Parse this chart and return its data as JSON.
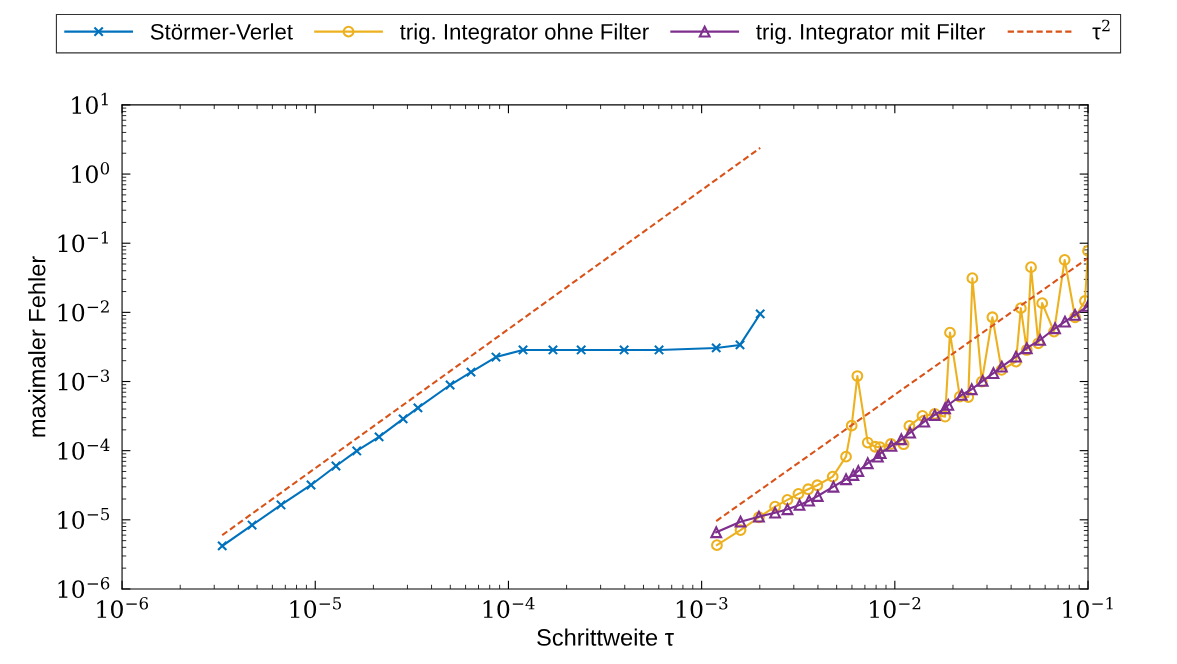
{
  "chart_data": {
    "type": "line",
    "xlabel": "Schrittweite τ",
    "ylabel": "maximaler Fehler",
    "log": "xy",
    "grid": false,
    "legend": "top",
    "xlim": [
      1e-06,
      0.1
    ],
    "ylim": [
      1e-06,
      10
    ],
    "xticks": [
      {
        "value": 1e-06,
        "label": "10$^{−6}$"
      },
      {
        "value": 1e-05,
        "label": "10$^{−5}$"
      },
      {
        "value": 0.0001,
        "label": "10$^{−4}$"
      },
      {
        "value": 0.001,
        "label": "10$^{−3}$"
      },
      {
        "value": 0.01,
        "label": "10$^{−2}$"
      },
      {
        "value": 0.1,
        "label": "10$^{−1}$"
      }
    ],
    "yticks": [
      {
        "value": 1e-06,
        "label": "10$^{−6}$"
      },
      {
        "value": 1e-05,
        "label": "10$^{−5}$"
      },
      {
        "value": 0.0001,
        "label": "10$^{−4}$"
      },
      {
        "value": 0.001,
        "label": "10$^{−3}$"
      },
      {
        "value": 0.01,
        "label": "10$^{−2}$"
      },
      {
        "value": 0.1,
        "label": "10$^{−1}$"
      },
      {
        "value": 1,
        "label": "10$^{0}$"
      },
      {
        "value": 10,
        "label": "10$^{1}$"
      }
    ],
    "series": [
      {
        "name": "Störmer-Verlet",
        "color": "#0072bd",
        "marker": "cross",
        "line_style": "solid",
        "x": [
          3.3e-06,
          4.71e-06,
          6.65e-06,
          9.51e-06,
          1.28e-05,
          1.64e-05,
          2.14e-05,
          2.85e-05,
          3.4e-05,
          4.99e-05,
          6.4e-05,
          8.62e-05,
          0.000119,
          0.00017,
          0.000238,
          0.000397,
          0.000602,
          0.00119,
          0.00158,
          0.00201
        ],
        "values": [
          4.19e-06,
          8.4e-06,
          1.64e-05,
          3.19e-05,
          6e-05,
          9.9e-05,
          0.000158,
          0.000288,
          0.000415,
          0.00089,
          0.00137,
          0.00226,
          0.00286,
          0.00286,
          0.00286,
          0.00286,
          0.00286,
          0.00306,
          0.00338,
          0.0095
        ]
      },
      {
        "name": "trig. Integrator ohne Filter",
        "color": "#edb120",
        "marker": "circle",
        "line_style": "solid",
        "x": [
          0.0012,
          0.00159,
          0.00198,
          0.0024,
          0.00278,
          0.00317,
          0.00356,
          0.00397,
          0.00477,
          0.00559,
          0.00598,
          0.0064,
          0.00724,
          0.00791,
          0.00838,
          0.00955,
          0.0111,
          0.0119,
          0.0139,
          0.0161,
          0.0182,
          0.0193,
          0.0217,
          0.024,
          0.0252,
          0.0282,
          0.032,
          0.0357,
          0.0424,
          0.0449,
          0.0482,
          0.0507,
          0.0553,
          0.0579,
          0.0667,
          0.0757,
          0.0857,
          0.0964,
          0.1
        ],
        "values": [
          4.3e-06,
          7.1e-06,
          1.09e-05,
          1.55e-05,
          1.94e-05,
          2.37e-05,
          2.77e-05,
          3.16e-05,
          4.21e-05,
          8.2e-05,
          0.00023,
          0.0012,
          0.000131,
          0.000114,
          0.000112,
          0.000125,
          0.000124,
          0.000228,
          0.000318,
          0.00034,
          0.00031,
          0.00509,
          0.000604,
          0.000596,
          0.0312,
          0.000995,
          0.0085,
          0.00147,
          0.00194,
          0.0115,
          0.00286,
          0.045,
          0.00357,
          0.0136,
          0.00526,
          0.0573,
          0.0085,
          0.0146,
          0.0773
        ]
      },
      {
        "name": "trig. Integrator mit Filter",
        "color": "#7e2f8e",
        "marker": "triangle",
        "line_style": "solid",
        "x": [
          0.00119,
          0.00159,
          0.00198,
          0.0024,
          0.00278,
          0.00321,
          0.0036,
          0.00399,
          0.00481,
          0.00559,
          0.0061,
          0.00647,
          0.00724,
          0.00817,
          0.00845,
          0.0096,
          0.0108,
          0.012,
          0.0142,
          0.0161,
          0.0182,
          0.0189,
          0.0222,
          0.025,
          0.0285,
          0.0324,
          0.0358,
          0.0424,
          0.0482,
          0.0565,
          0.0675,
          0.076,
          0.0857,
          0.1
        ],
        "values": [
          6.6e-06,
          9.4e-06,
          1.11e-05,
          1.27e-05,
          1.42e-05,
          1.64e-05,
          1.89e-05,
          2.21e-05,
          3.01e-05,
          3.86e-05,
          4.45e-05,
          5.08e-05,
          6.58e-05,
          8.2e-05,
          9.2e-05,
          0.000117,
          0.000146,
          0.000182,
          0.000263,
          0.000328,
          0.00041,
          0.000458,
          0.00064,
          0.000773,
          0.00102,
          0.00132,
          0.00164,
          0.00229,
          0.00303,
          0.00399,
          0.00589,
          0.00735,
          0.0092,
          0.0124
        ]
      },
      {
        "name": "τ$^{2}$",
        "color": "#d95319",
        "marker": "none",
        "line_style": "dashed",
        "x": [
          3.3e-06,
          0.00201
        ],
        "values": [
          6e-06,
          2.39
        ]
      },
      {
        "color": "#d95319",
        "marker": "none",
        "line_style": "dashed",
        "x": [
          0.00119,
          0.1
        ],
        "values": [
          9.6e-06,
          0.061
        ]
      }
    ]
  }
}
